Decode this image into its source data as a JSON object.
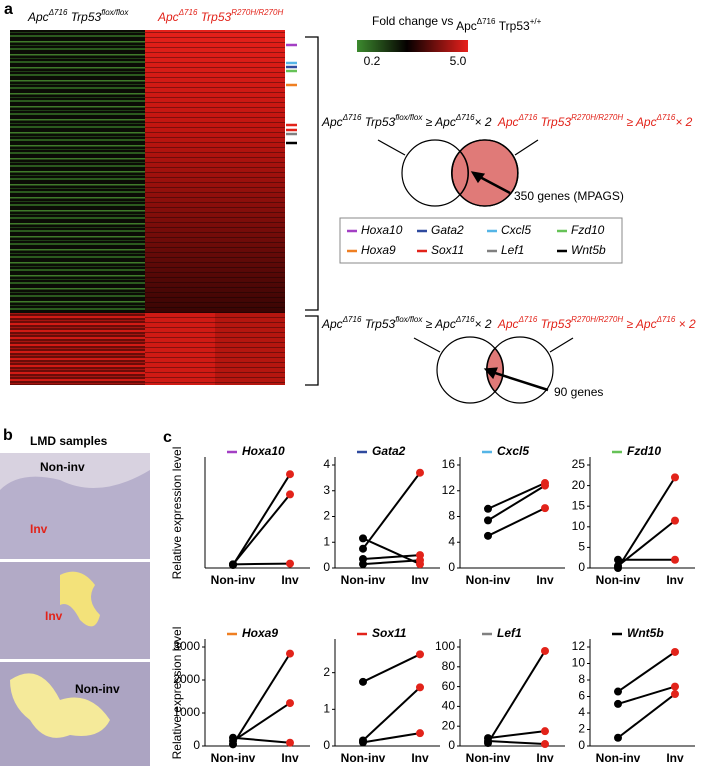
{
  "figure": {
    "panel_a": {
      "label": "a",
      "column_label_left": [
        "Apc",
        "Δ716",
        " Trp53",
        "flox/flox"
      ],
      "column_label_right": [
        "Apc",
        "Δ716",
        " Trp53",
        "R270H/R270H"
      ],
      "scale_title": [
        "Fold change vs ",
        "",
        "Apc",
        "Δ716",
        " Trp53",
        "+/+"
      ],
      "scale_min": "0.2",
      "scale_max": "5.0",
      "venn_top_condition_1": [
        "Apc",
        "Δ716",
        " Trp53",
        "flox/flox",
        " ≥ Apc",
        "Δ716",
        "× 2"
      ],
      "venn_top_condition_2": [
        "Apc",
        "Δ716",
        " Trp53",
        "R270H/R270H",
        " ≥ Apc",
        "Δ716",
        "× 2"
      ],
      "venn_top_label": "350 genes (MPAGS)",
      "venn_bottom_condition_1": [
        "Apc",
        "Δ716",
        " Trp53",
        "flox/flox",
        " ≥ Apc",
        "Δ716",
        "× 2"
      ],
      "venn_bottom_condition_2": [
        "Apc",
        "Δ716",
        " Trp53",
        "R270H/R270H",
        " ≥ Apc",
        "Δ716",
        " × 2"
      ],
      "venn_bottom_label": "90 genes",
      "genes": [
        {
          "name": "Hoxa10",
          "color": "#a33fc4"
        },
        {
          "name": "Gata2",
          "color": "#2f4a9e"
        },
        {
          "name": "Cxcl5",
          "color": "#55b5e6"
        },
        {
          "name": "Fzd10",
          "color": "#66c257"
        },
        {
          "name": "Hoxa9",
          "color": "#ef7f22"
        },
        {
          "name": "Sox11",
          "color": "#e2231a"
        },
        {
          "name": "Lef1",
          "color": "#808080"
        },
        {
          "name": "Wnt5b",
          "color": "#000000"
        }
      ]
    },
    "panel_b": {
      "label": "b",
      "title": "LMD samples",
      "image_labels": [
        "Non-inv",
        "Inv",
        "Inv",
        "Non-inv"
      ]
    },
    "panel_c": {
      "label": "c",
      "y_label": "Relative expression level"
    }
  },
  "chart_data": [
    {
      "type": "line",
      "title": "Hoxa10",
      "color": "#a33fc4",
      "categories": [
        "Non-inv",
        "Inv"
      ],
      "category_colors": [
        "#000000",
        "#e2231a"
      ],
      "point_colors": [
        "#000000",
        "#e2231a"
      ],
      "series": [
        {
          "values": [
            0.1,
            2.0
          ]
        },
        {
          "values": [
            0.08,
            2.55
          ]
        },
        {
          "values": [
            0.1,
            0.12
          ]
        }
      ],
      "ylim": [
        0,
        2.8
      ],
      "yticks": []
    },
    {
      "type": "line",
      "title": "Gata2",
      "color": "#2f4a9e",
      "categories": [
        "Non-inv",
        "Inv"
      ],
      "category_colors": [
        "#000000",
        "#e2231a"
      ],
      "point_colors": [
        "#000000",
        "#e2231a"
      ],
      "series": [
        {
          "values": [
            0.75,
            3.7
          ]
        },
        {
          "values": [
            1.15,
            0.15
          ]
        },
        {
          "values": [
            0.35,
            0.5
          ]
        },
        {
          "values": [
            0.15,
            0.3
          ]
        }
      ],
      "ylim": [
        0,
        4
      ],
      "yticks": [
        0,
        1,
        2,
        3,
        4
      ]
    },
    {
      "type": "line",
      "title": "Cxcl5",
      "color": "#55b5e6",
      "categories": [
        "Non-inv",
        "Inv"
      ],
      "category_colors": [
        "#000000",
        "#e2231a"
      ],
      "point_colors": [
        "#000000",
        "#e2231a"
      ],
      "series": [
        {
          "values": [
            9.2,
            13.2
          ]
        },
        {
          "values": [
            7.4,
            12.8
          ]
        },
        {
          "values": [
            5.0,
            9.3
          ]
        }
      ],
      "ylim": [
        0,
        16
      ],
      "yticks": [
        0,
        4,
        8,
        12,
        16
      ]
    },
    {
      "type": "line",
      "title": "Fzd10",
      "color": "#66c257",
      "categories": [
        "Non-inv",
        "Inv"
      ],
      "category_colors": [
        "#000000",
        "#e2231a"
      ],
      "point_colors": [
        "#000000",
        "#e2231a"
      ],
      "series": [
        {
          "values": [
            0,
            22
          ]
        },
        {
          "values": [
            0.5,
            11.5
          ]
        },
        {
          "values": [
            2,
            2
          ]
        }
      ],
      "ylim": [
        0,
        25
      ],
      "yticks": [
        0,
        5,
        10,
        15,
        20,
        25
      ]
    },
    {
      "type": "line",
      "title": "Hoxa9",
      "color": "#ef7f22",
      "categories": [
        "Non-inv",
        "Inv"
      ],
      "category_colors": [
        "#000000",
        "#e2231a"
      ],
      "point_colors": [
        "#000000",
        "#e2231a"
      ],
      "series": [
        {
          "values": [
            50,
            2800
          ]
        },
        {
          "values": [
            150,
            1300
          ]
        },
        {
          "values": [
            250,
            100
          ]
        }
      ],
      "ylim": [
        0,
        3000
      ],
      "yticks": [
        0,
        1000,
        2000,
        3000
      ]
    },
    {
      "type": "line",
      "title": "Sox11",
      "color": "#e2231a",
      "categories": [
        "Non-inv",
        "Inv"
      ],
      "category_colors": [
        "#000000",
        "#e2231a"
      ],
      "point_colors": [
        "#000000",
        "#e2231a"
      ],
      "series": [
        {
          "values": [
            1.75,
            2.5
          ]
        },
        {
          "values": [
            0.15,
            1.6
          ]
        },
        {
          "values": [
            0.1,
            0.35
          ]
        }
      ],
      "ylim": [
        0,
        2.7
      ],
      "yticks": [
        0,
        1,
        2
      ]
    },
    {
      "type": "line",
      "title": "Lef1",
      "color": "#808080",
      "categories": [
        "Non-inv",
        "Inv"
      ],
      "category_colors": [
        "#000000",
        "#e2231a"
      ],
      "point_colors": [
        "#000000",
        "#e2231a"
      ],
      "series": [
        {
          "values": [
            3,
            96
          ]
        },
        {
          "values": [
            8,
            15
          ]
        },
        {
          "values": [
            5,
            2
          ]
        }
      ],
      "ylim": [
        0,
        100
      ],
      "yticks": [
        0,
        20,
        40,
        60,
        80,
        100
      ]
    },
    {
      "type": "line",
      "title": "Wnt5b",
      "color": "#000000",
      "categories": [
        "Non-inv",
        "Inv"
      ],
      "category_colors": [
        "#000000",
        "#e2231a"
      ],
      "point_colors": [
        "#000000",
        "#e2231a"
      ],
      "series": [
        {
          "values": [
            6.6,
            11.4
          ]
        },
        {
          "values": [
            5.1,
            7.2
          ]
        },
        {
          "values": [
            1.0,
            6.3
          ]
        }
      ],
      "ylim": [
        0,
        12
      ],
      "yticks": [
        0,
        2,
        4,
        6,
        8,
        10,
        12
      ]
    }
  ]
}
